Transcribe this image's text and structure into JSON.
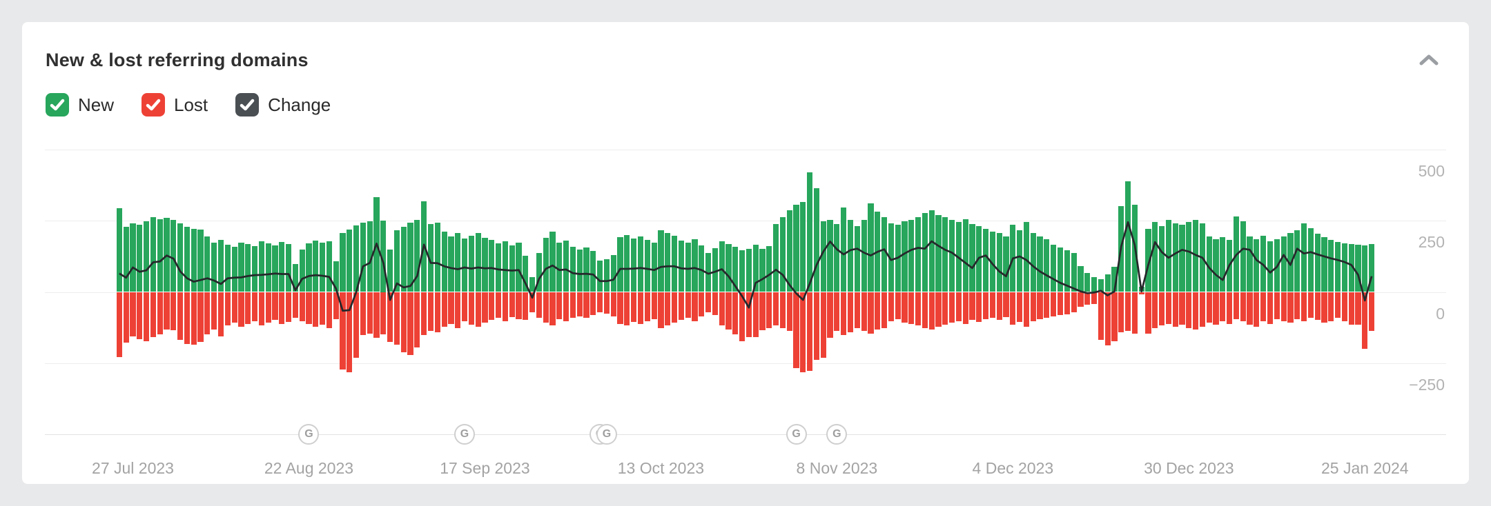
{
  "card": {
    "title": "New & lost referring domains"
  },
  "legend": {
    "items": [
      {
        "label": "New",
        "color": "#27a65c",
        "checked": true
      },
      {
        "label": "Lost",
        "color": "#ee4136",
        "checked": true
      },
      {
        "label": "Change",
        "color": "#4a4f54",
        "checked": true
      }
    ]
  },
  "chart_data": {
    "type": "bar",
    "title": "New & lost referring domains",
    "xlabel": "",
    "ylabel": "",
    "ylim": [
      -500,
      500
    ],
    "grid": true,
    "legend_position": "top-left",
    "y_ticks": [
      "500",
      "250",
      "0",
      "−250"
    ],
    "x_ticks": [
      {
        "label": "27 Jul 2023",
        "index": 2
      },
      {
        "label": "22 Aug 2023",
        "index": 28
      },
      {
        "label": "17 Sep 2023",
        "index": 54
      },
      {
        "label": "13 Oct 2023",
        "index": 80
      },
      {
        "label": "8 Nov 2023",
        "index": 106
      },
      {
        "label": "4 Dec 2023",
        "index": 132
      },
      {
        "label": "30 Dec 2023",
        "index": 158
      },
      {
        "label": "25 Jan 2024",
        "index": 184
      }
    ],
    "google_update_markers": {
      "glyph": "G",
      "indices": [
        28,
        51,
        71,
        72,
        100,
        106
      ]
    },
    "series": [
      {
        "name": "New",
        "type": "bar",
        "color": "#27a65c",
        "values": [
          295,
          228,
          242,
          236,
          248,
          262,
          255,
          260,
          252,
          240,
          230,
          222,
          218,
          196,
          172,
          184,
          166,
          158,
          173,
          168,
          161,
          178,
          170,
          163,
          176,
          168,
          98,
          148,
          170,
          181,
          173,
          179,
          108,
          206,
          218,
          233,
          243,
          248,
          332,
          250,
          148,
          216,
          228,
          243,
          252,
          318,
          238,
          243,
          212,
          196,
          206,
          188,
          198,
          208,
          191,
          182,
          171,
          179,
          163,
          173,
          128,
          52,
          138,
          189,
          211,
          173,
          181,
          158,
          149,
          156,
          143,
          110,
          114,
          129,
          193,
          199,
          188,
          196,
          183,
          173,
          216,
          208,
          198,
          181,
          173,
          186,
          163,
          136,
          153,
          178,
          168,
          158,
          146,
          152,
          166,
          152,
          161,
          238,
          262,
          286,
          306,
          316,
          420,
          365,
          248,
          252,
          238,
          296,
          252,
          232,
          252,
          312,
          283,
          262,
          242,
          236,
          248,
          252,
          262,
          278,
          288,
          270,
          262,
          252,
          246,
          256,
          238,
          232,
          222,
          212,
          206,
          196,
          236,
          216,
          246,
          206,
          196,
          186,
          166,
          156,
          146,
          136,
          92,
          66,
          52,
          46,
          62,
          88,
          302,
          388,
          306,
          18,
          222,
          246,
          232,
          252,
          242,
          236,
          246,
          252,
          242,
          196,
          186,
          192,
          182,
          266,
          248,
          196,
          186,
          198,
          178,
          186,
          196,
          206,
          216,
          242,
          225,
          205,
          192,
          183,
          175,
          170,
          168,
          166,
          164,
          168
        ]
      },
      {
        "name": "Lost",
        "type": "bar",
        "color": "#ee4136",
        "values": [
          -230,
          -178,
          -156,
          -165,
          -172,
          -158,
          -148,
          -132,
          -135,
          -168,
          -182,
          -186,
          -176,
          -148,
          -132,
          -156,
          -118,
          -108,
          -122,
          -112,
          -102,
          -118,
          -108,
          -98,
          -112,
          -105,
          -92,
          -102,
          -112,
          -122,
          -116,
          -126,
          -96,
          -272,
          -282,
          -232,
          -152,
          -146,
          -162,
          -148,
          -176,
          -186,
          -212,
          -222,
          -196,
          -152,
          -136,
          -142,
          -122,
          -112,
          -126,
          -102,
          -116,
          -122,
          -108,
          -98,
          -92,
          -102,
          -88,
          -96,
          -98,
          -72,
          -92,
          -108,
          -118,
          -96,
          -102,
          -92,
          -86,
          -92,
          -82,
          -72,
          -76,
          -86,
          -112,
          -118,
          -106,
          -112,
          -102,
          -96,
          -128,
          -118,
          -108,
          -98,
          -92,
          -102,
          -86,
          -72,
          -82,
          -118,
          -132,
          -148,
          -172,
          -158,
          -158,
          -135,
          -128,
          -118,
          -128,
          -138,
          -268,
          -282,
          -278,
          -238,
          -232,
          -162,
          -136,
          -152,
          -142,
          -126,
          -136,
          -146,
          -132,
          -126,
          -102,
          -96,
          -108,
          -112,
          -118,
          -126,
          -132,
          -122,
          -116,
          -108,
          -102,
          -112,
          -98,
          -106,
          -96,
          -92,
          -98,
          -88,
          -116,
          -106,
          -122,
          -102,
          -96,
          -92,
          -86,
          -82,
          -78,
          -72,
          -52,
          -46,
          -42,
          -168,
          -188,
          -172,
          -142,
          -138,
          -146,
          -8,
          -146,
          -128,
          -118,
          -112,
          -122,
          -116,
          -126,
          -132,
          -122,
          -108,
          -116,
          -102,
          -112,
          -96,
          -102,
          -116,
          -122,
          -102,
          -112,
          -96,
          -102,
          -108,
          -96,
          -102,
          -92,
          -98,
          -108,
          -102,
          -92,
          -102,
          -116,
          -114,
          -199,
          -138
        ]
      },
      {
        "name": "Change",
        "type": "line",
        "color": "#26282b",
        "values": [
          65,
          50,
          86,
          71,
          76,
          104,
          107,
          128,
          117,
          72,
          48,
          36,
          42,
          48,
          40,
          28,
          48,
          50,
          51,
          56,
          59,
          60,
          62,
          65,
          63,
          63,
          6,
          46,
          56,
          59,
          57,
          53,
          12,
          -66,
          -64,
          0,
          90,
          102,
          170,
          102,
          -28,
          30,
          16,
          21,
          56,
          166,
          102,
          101,
          90,
          84,
          80,
          86,
          82,
          86,
          83,
          84,
          79,
          77,
          75,
          77,
          30,
          -20,
          46,
          81,
          93,
          77,
          79,
          66,
          63,
          64,
          61,
          38,
          38,
          43,
          81,
          81,
          82,
          84,
          81,
          77,
          88,
          90,
          90,
          83,
          81,
          84,
          77,
          64,
          71,
          80,
          55,
          20,
          -15,
          -55,
          32,
          45,
          60,
          78,
          60,
          25,
          -5,
          -28,
          30,
          95,
          142,
          177,
          150,
          132,
          147,
          152,
          138,
          128,
          141,
          150,
          112,
          120,
          135,
          148,
          155,
          152,
          178,
          162,
          148,
          138,
          120,
          102,
          84,
          120,
          128,
          98,
          72,
          55,
          118,
          125,
          112,
          90,
          72,
          58,
          45,
          32,
          22,
          12,
          2,
          -4,
          -2,
          4,
          -12,
          2,
          160,
          245,
          165,
          2,
          95,
          175,
          140,
          120,
          135,
          148,
          142,
          130,
          120,
          85,
          60,
          42,
          95,
          130,
          152,
          148,
          112,
          95,
          68,
          88,
          130,
          95,
          152,
          135,
          140,
          132,
          125,
          118,
          112,
          105,
          95,
          60,
          -30,
          55
        ]
      }
    ]
  }
}
